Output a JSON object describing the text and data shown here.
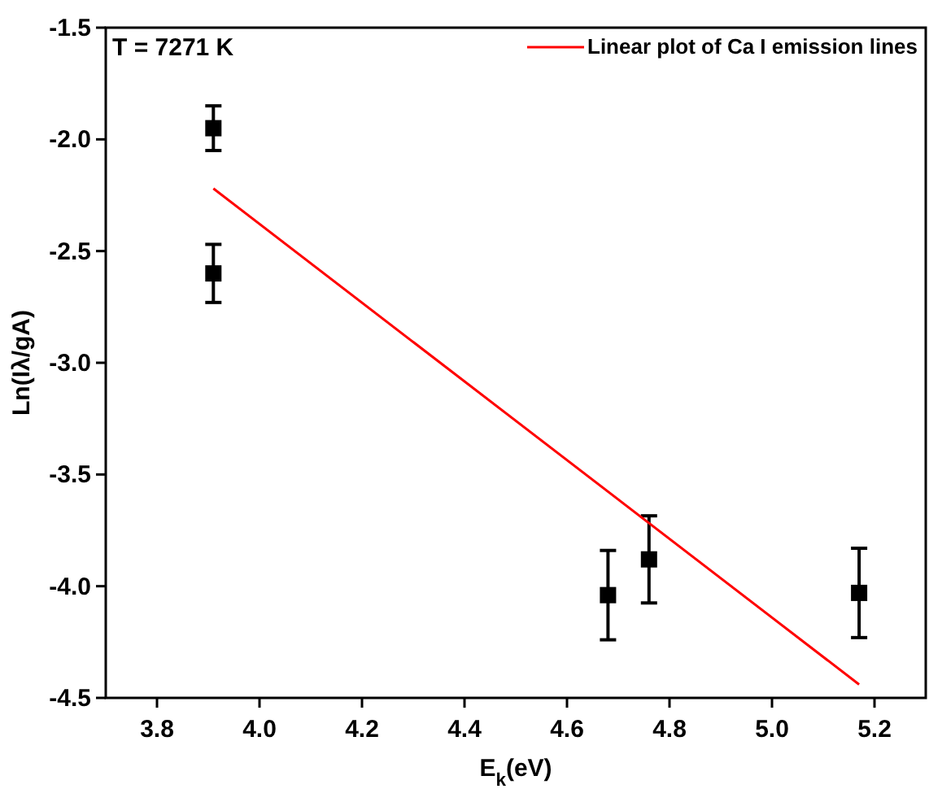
{
  "chart_data": {
    "type": "scatter",
    "xlabel": "E$_{k}$(eV)",
    "ylabel": "Ln(Iλ/gA)",
    "annotations": [
      "T = 7271 K"
    ],
    "xlim": [
      3.7,
      5.3
    ],
    "xticks": [
      3.8,
      {
        "value": 4,
        "label": "4.0"
      },
      4.2,
      4.4,
      4.6,
      4.8,
      {
        "value": 5,
        "label": "5.0"
      },
      5.2
    ],
    "ylim": [
      -4.5,
      -1.5
    ],
    "yticks": [
      -4.5,
      {
        "value": -4,
        "label": "-4.0"
      },
      -3.5,
      {
        "value": -3,
        "label": "-3.0"
      },
      -2.5,
      {
        "value": -2,
        "label": "-2.0"
      },
      -1.5
    ],
    "grid": false,
    "legend": "top right",
    "series": [
      {
        "marker": "square",
        "color": "#000000",
        "x": [
          3.91,
          3.91,
          4.68,
          4.76,
          5.17
        ],
        "values": [
          -1.95,
          -2.6,
          -4.04,
          -3.88,
          -4.03
        ],
        "errors": [
          0.1,
          0.13,
          0.2,
          0.195,
          0.2
        ]
      },
      {
        "type": "line",
        "name": "Linear plot of Ca I emission lines",
        "color": "#ff0000",
        "x": [
          3.91,
          5.17
        ],
        "values": [
          -2.22,
          -4.44
        ],
        "line_style": "solid"
      }
    ]
  }
}
